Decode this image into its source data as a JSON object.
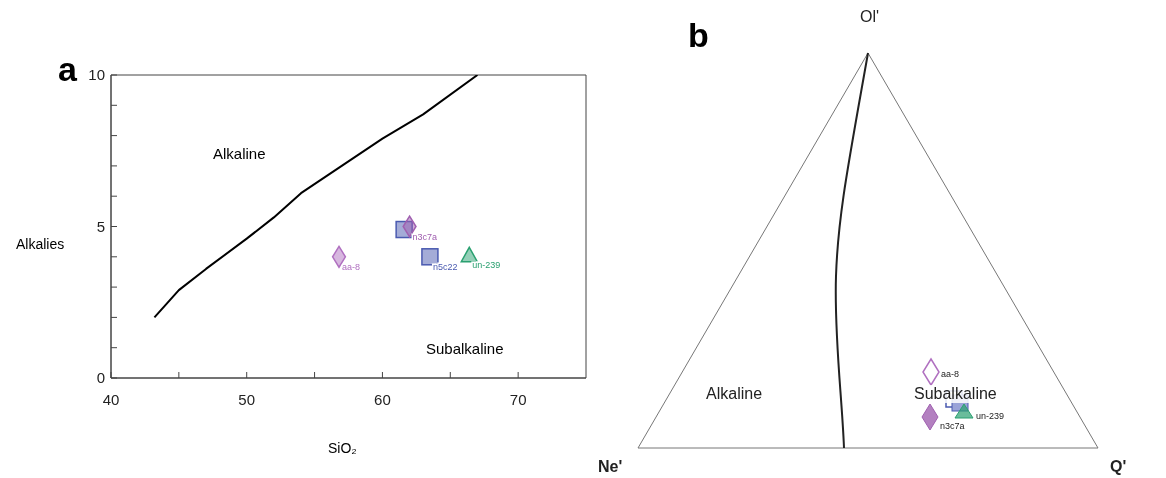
{
  "chart_data": [
    {
      "type": "scatter",
      "title": "a",
      "xlabel": "SiO₂",
      "ylabel": "Alkalies",
      "xlim": [
        40,
        75
      ],
      "xticks": [
        40,
        {
          "value": 45,
          "label": null
        },
        50,
        {
          "value": 55,
          "label": null
        },
        60,
        {
          "value": 65,
          "label": null
        },
        70
      ],
      "ylim": [
        0,
        10
      ],
      "yticks": [
        0,
        {
          "value": 1,
          "label": null
        },
        {
          "value": 2,
          "label": null
        },
        {
          "value": 3,
          "label": null
        },
        {
          "value": 4,
          "label": null
        },
        5,
        {
          "value": 6,
          "label": null
        },
        {
          "value": 7,
          "label": null
        },
        {
          "value": 8,
          "label": null
        },
        {
          "value": 9,
          "label": null
        },
        10
      ],
      "annotations": [
        "Alkaline",
        "Subalkaline"
      ],
      "series": [
        {
          "type": "line",
          "color": "#000000",
          "marker": "none",
          "line_style": "solid",
          "x": [
            43.2,
            45,
            47,
            50,
            52,
            54,
            57,
            60,
            63,
            67
          ],
          "values": [
            2,
            2.9,
            3.6,
            4.6,
            5.3,
            6.1,
            7,
            7.9,
            8.7,
            10
          ]
        },
        {
          "color": "#4a5ab0",
          "marker": "square",
          "x": [
            61.6
          ],
          "values": [
            4.9
          ]
        },
        {
          "name": "n3c7a",
          "color": "#a060b0",
          "marker": "diamond",
          "x": [
            62
          ],
          "values": [
            5
          ]
        },
        {
          "name": "aa-8",
          "color": "#b070c0",
          "marker": "diamond",
          "x": [
            56.8
          ],
          "values": [
            4
          ]
        },
        {
          "name": "n5c22",
          "color": "#4a5ab0",
          "marker": "square",
          "x": [
            63.5
          ],
          "values": [
            4
          ]
        },
        {
          "name": "un-239",
          "color": "#2aa070",
          "marker": "triangle",
          "x": [
            66.4
          ],
          "values": [
            4.05
          ]
        }
      ]
    },
    {
      "type": "other",
      "title": "b",
      "annotations": [
        "Ol'",
        "Ne'",
        "Q'",
        "Alkaline",
        "Subalkaline",
        "aa-8",
        "n3c7a",
        "un-239"
      ]
    }
  ]
}
